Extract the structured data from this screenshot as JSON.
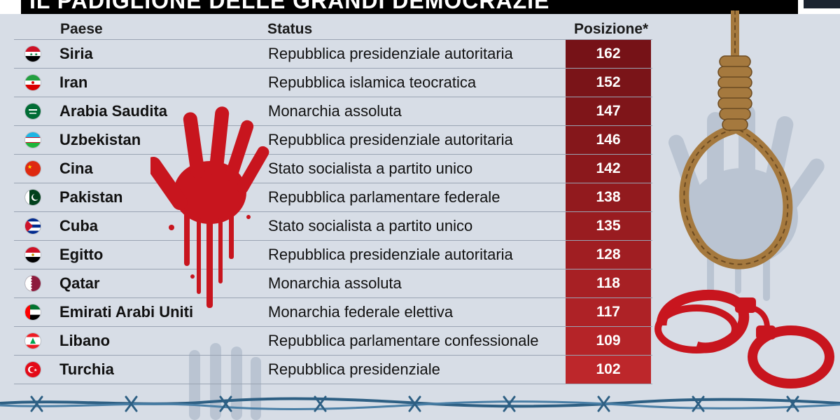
{
  "title": "IL PADIGLIONE DELLE GRANDI DEMOCRAZIE",
  "headers": {
    "country": "Paese",
    "status": "Status",
    "rank": "Posizione*"
  },
  "rows": [
    {
      "country": "Siria",
      "status": "Repubblica presidenziale autoritaria",
      "rank": "162",
      "flag": "syria"
    },
    {
      "country": "Iran",
      "status": "Repubblica islamica teocratica",
      "rank": "152",
      "flag": "iran"
    },
    {
      "country": "Arabia Saudita",
      "status": "Monarchia assoluta",
      "rank": "147",
      "flag": "saudi-arabia"
    },
    {
      "country": "Uzbekistan",
      "status": "Repubblica presidenziale autoritaria",
      "rank": "146",
      "flag": "uzbekistan"
    },
    {
      "country": "Cina",
      "status": "Stato socialista a partito unico",
      "rank": "142",
      "flag": "china"
    },
    {
      "country": "Pakistan",
      "status": "Repubblica parlamentare federale",
      "rank": "138",
      "flag": "pakistan"
    },
    {
      "country": "Cuba",
      "status": "Stato socialista a partito unico",
      "rank": "135",
      "flag": "cuba"
    },
    {
      "country": "Egitto",
      "status": "Repubblica presidenziale autoritaria",
      "rank": "128",
      "flag": "egypt"
    },
    {
      "country": "Qatar",
      "status": "Monarchia assoluta",
      "rank": "118",
      "flag": "qatar"
    },
    {
      "country": "Emirati Arabi Uniti",
      "status": "Monarchia federale elettiva",
      "rank": "117",
      "flag": "uae"
    },
    {
      "country": "Libano",
      "status": "Repubblica parlamentare confessionale",
      "rank": "109",
      "flag": "lebanon"
    },
    {
      "country": "Turchia",
      "status": "Repubblica presidenziale",
      "rank": "102",
      "flag": "turkey"
    }
  ],
  "colors": {
    "rank_bg_top": "#7a1418",
    "rank_bg_bottom": "#c0262c",
    "blood": "#c8151e",
    "background": "#d7dde6"
  }
}
